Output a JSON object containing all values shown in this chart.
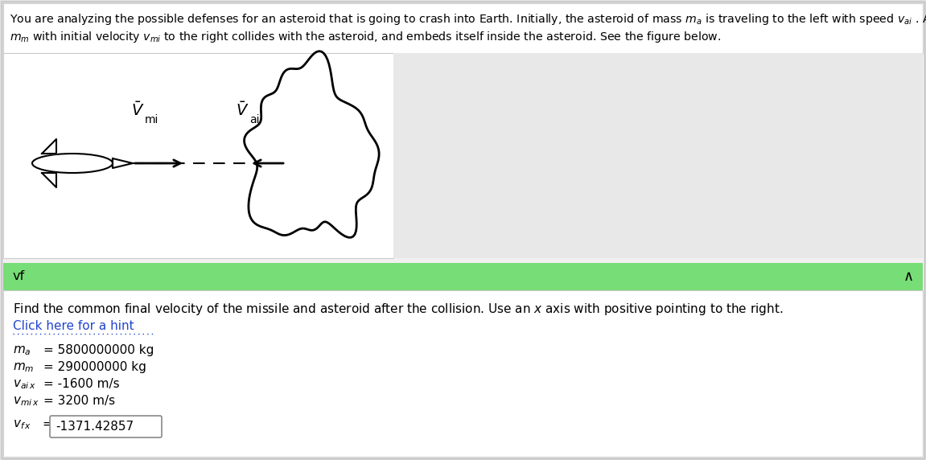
{
  "bg_color": "#e0e0e0",
  "top_panel_bg": "#ffffff",
  "top_panel_border": "#cccccc",
  "figure_panel_bg": "#ffffff",
  "figure_panel_border": "#cccccc",
  "green_bar_color": "#77dd77",
  "green_bar_text": "vf",
  "green_bar_caret": "∧",
  "bottom_panel_bg": "#ffffff",
  "title_line1": "You are analyzing the possible defenses for an asteroid that is going to crash into Earth. Initially, the asteroid of mass $m_a$ is traveling to the left with speed $v_{ai}$ . A missile of mass",
  "title_line2": "$m_m$ with initial velocity $v_{mi}$ to the right collides with the asteroid, and embeds itself inside the asteroid. See the figure below.",
  "instruction_text": "Find the common final velocity of the missile and asteroid after the collision. Use an $x$ axis with positive pointing to the right.",
  "hint_text": "Click here for a hint",
  "param1_label": "$m_a$",
  "param1_value": "= 5800000000 kg",
  "param2_label": "$m_m$",
  "param2_value": "= 290000000 kg",
  "param3_label": "$v_{ai\\,x}$",
  "param3_value": "= -1600 m/s",
  "param4_label": "$v_{mi\\,x}$",
  "param4_value": "= 3200 m/s",
  "answer_label": "$v_{f\\,x}$",
  "answer_eq": "=",
  "answer_value": "-1371.42857",
  "rocket_color": "#ffffff",
  "rocket_edge": "#000000",
  "asteroid_color": "#ffffff",
  "asteroid_edge": "#000000",
  "arrow_color": "#000000",
  "dash_color": "#000000"
}
